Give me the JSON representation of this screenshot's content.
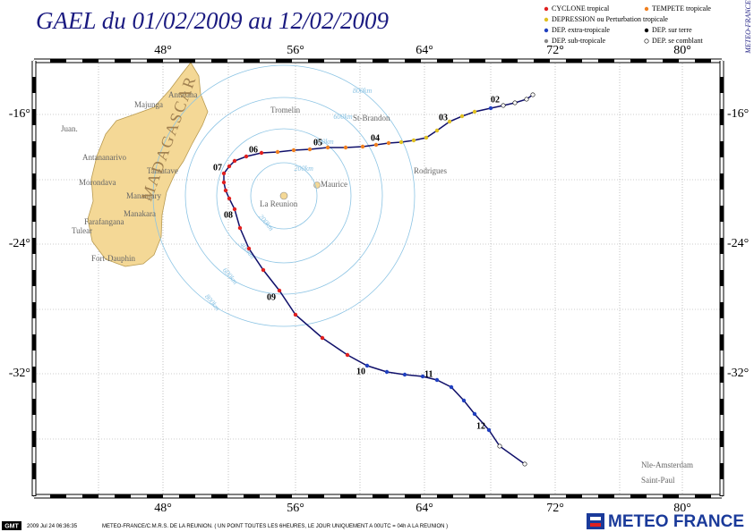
{
  "header": {
    "title": "GAEL du 01/02/2009 au 12/02/2009",
    "side_text": "METEO-FRANCE"
  },
  "legend": {
    "items": [
      "CYCLONE tropical",
      "TEMPETE tropicale",
      "DEPRESSION ou Perturbation tropicale",
      "DEP. extra-tropicale",
      "DEP. sur terre",
      "DEP. sub-tropicale",
      "DEP. se comblant"
    ]
  },
  "map": {
    "lon_labels": [
      "48°",
      "56°",
      "64°",
      "72°",
      "80°"
    ],
    "lat_labels": [
      "-16°",
      "-24°",
      "-32°"
    ],
    "places": [
      "Juan.",
      "Antalaha",
      "Majunga",
      "Tromelin",
      "St-Brandon",
      "Tamatave",
      "Antananarivo",
      "Morondava",
      "Mananjary",
      "Manakara",
      "Farafangana",
      "Tulear",
      "Fort-Dauphin",
      "Maurice",
      "La Reunion",
      "Rodrigues",
      "Nle-Amsterdam",
      "Saint-Paul"
    ],
    "country": "MADAGASCAR",
    "rings": [
      "200km",
      "400km",
      "600km",
      "800km"
    ],
    "days": [
      "02",
      "03",
      "04",
      "05",
      "06",
      "07",
      "08",
      "09",
      "10",
      "11",
      "12"
    ]
  },
  "footer": {
    "gmt": "GMT",
    "timestamp": "2009 Jul 24 06:36:35",
    "note": "METEO-FRANCE/C.M.R.S. DE LA REUNION. ( UN POINT TOUTES LES 6HEURES, LE JOUR UNIQUEMENT A 00UTC = 04h A LA REUNION )",
    "logo": "METEO FRANCE"
  }
}
